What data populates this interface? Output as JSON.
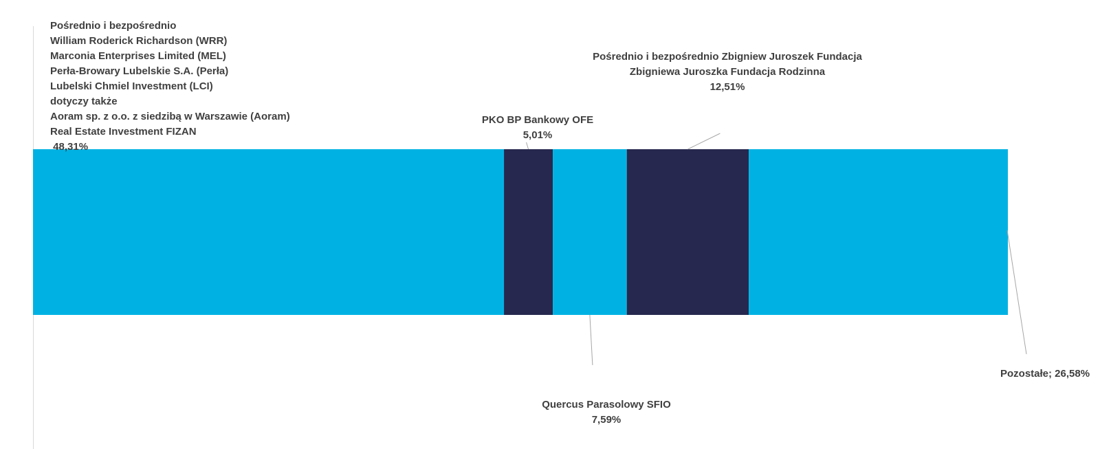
{
  "chart_data": {
    "type": "bar",
    "orientation": "horizontal-stacked",
    "categories": [
      ""
    ],
    "colors": {
      "light": "#00B2E3",
      "dark": "#26284F"
    },
    "series": [
      {
        "name": "Pośrednio i bezpośrednio William Roderick Richardson (WRR) Marconia Enterprises Limited (MEL) Perła-Browary Lubelskie S.A. (Perła) Lubelski Chmiel Investment (LCI) dotyczy także Aoram sp. z o.o. z siedzibą w Warszawie (Aoram) Real Estate Investment FIZAN",
        "label_lines": [
          "Pośrednio i bezpośrednio",
          "William Roderick Richardson (WRR)",
          "Marconia Enterprises Limited (MEL)",
          "Perła-Browary Lubelskie S.A. (Perła)",
          "Lubelski Chmiel Investment (LCI)",
          "dotyczy także",
          "Aoram sp. z o.o. z siedzibą w Warszawie (Aoram)",
          "Real Estate Investment FIZAN",
          " 48,31%"
        ],
        "value": 48.31,
        "color": "#00B2E3"
      },
      {
        "name": "PKO BP Bankowy OFE",
        "label_lines": [
          "PKO BP Bankowy OFE",
          "5,01%"
        ],
        "value": 5.01,
        "color": "#26284F"
      },
      {
        "name": "Quercus Parasolowy SFIO",
        "label_lines": [
          "Quercus Parasolowy SFIO",
          "7,59%"
        ],
        "value": 7.59,
        "color": "#00B2E3"
      },
      {
        "name": "Pośrednio i bezpośrednio Zbigniew Juroszek Fundacja Zbigniewa Juroszka Fundacja Rodzinna",
        "label_lines": [
          "Pośrednio i bezpośrednio Zbigniew Juroszek Fundacja",
          "Zbigniewa Juroszka Fundacja Rodzinna",
          "12,51%"
        ],
        "value": 12.51,
        "color": "#26284F"
      },
      {
        "name": "Pozostałe",
        "label_lines": [
          "Pozostałe; 26,58%"
        ],
        "value": 26.58,
        "color": "#00B2E3"
      }
    ],
    "xlim": [
      0,
      100
    ],
    "grid": false,
    "legend": "none"
  }
}
